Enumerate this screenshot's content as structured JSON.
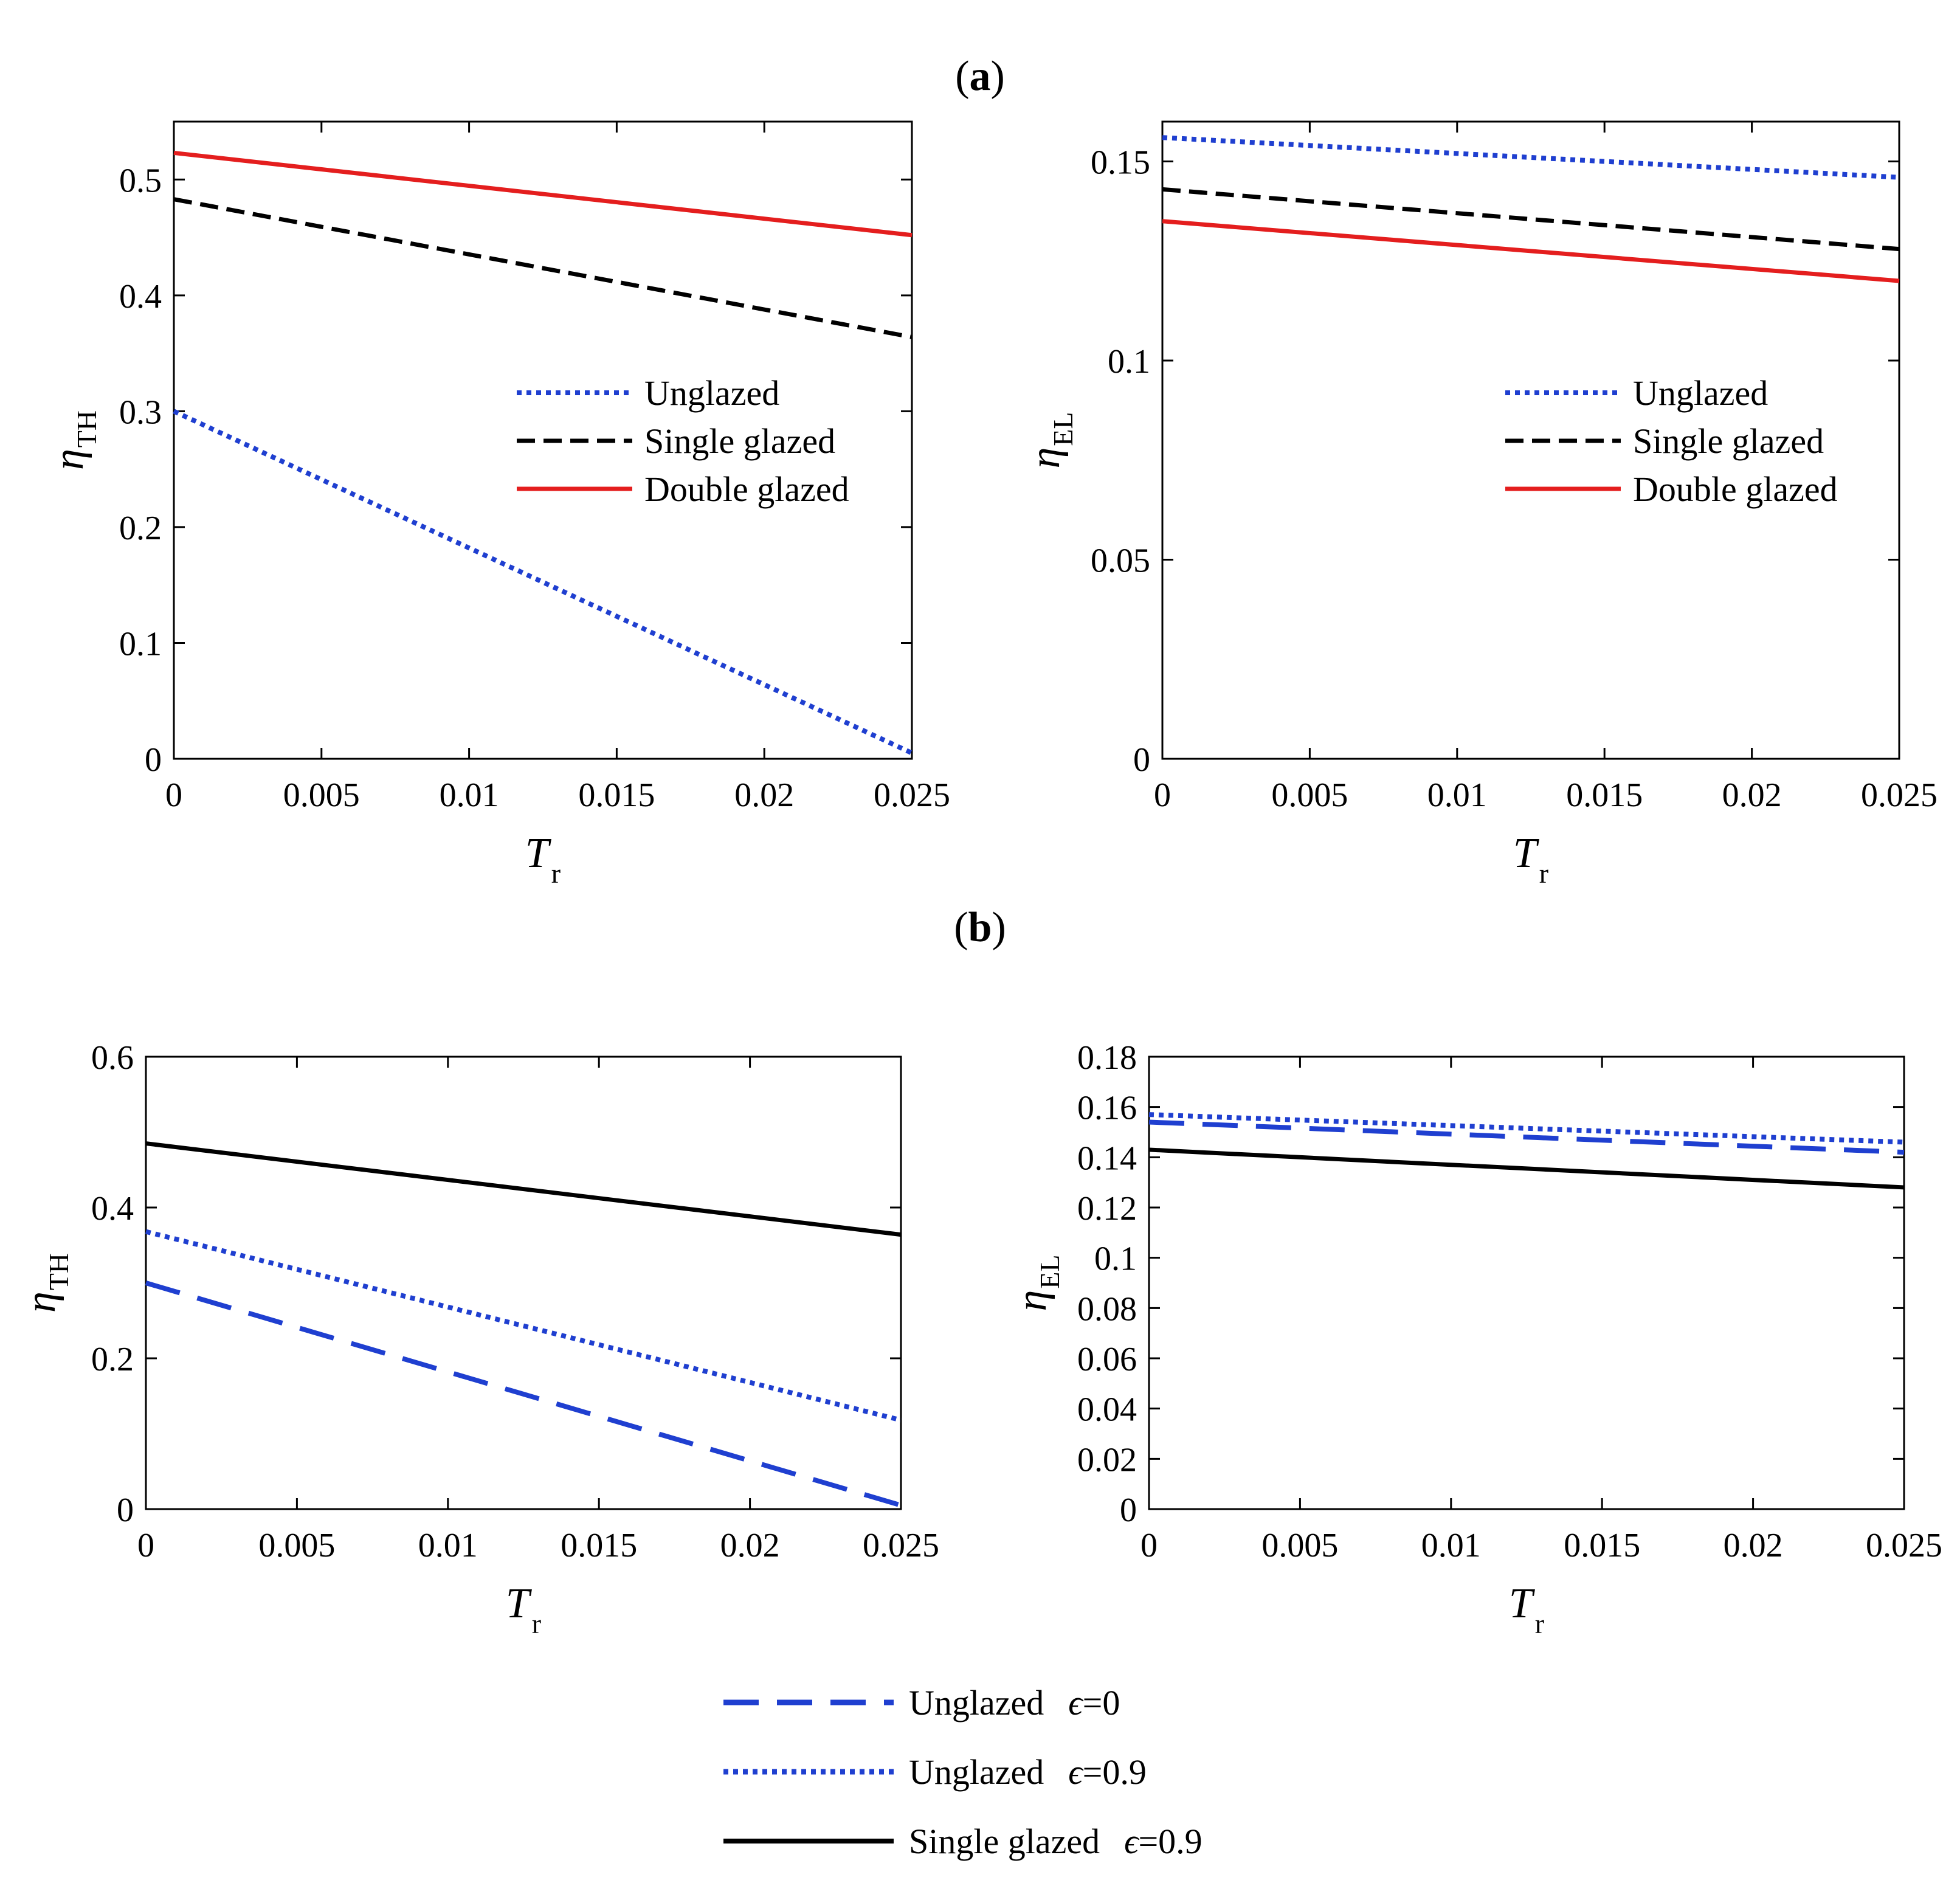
{
  "panel_labels": {
    "a": {
      "open": "(",
      "letter": "a",
      "close": ")"
    },
    "b": {
      "open": "(",
      "letter": "b",
      "close": ")"
    }
  },
  "colors": {
    "blue": "#1f3fd0",
    "black": "#000000",
    "red": "#e41e1e"
  },
  "chart_data": [
    {
      "id": "a-left",
      "type": "line",
      "xlabel_main": "T",
      "xlabel_sub": "r",
      "ylabel_main": "η",
      "ylabel_sub": "TH",
      "xlim": [
        0,
        0.025
      ],
      "ylim": [
        0,
        0.55
      ],
      "xticks": [
        0,
        0.005,
        0.01,
        0.015,
        0.02,
        0.025
      ],
      "xtick_labels": [
        "0",
        "0.005",
        "0.01",
        "0.015",
        "0.02",
        "0.025"
      ],
      "yticks": [
        0,
        0.1,
        0.2,
        0.3,
        0.4,
        0.5
      ],
      "ytick_labels": [
        "0",
        "0.1",
        "0.2",
        "0.3",
        "0.4",
        "0.5"
      ],
      "legend_position": "middle-right",
      "series": [
        {
          "name": "Unglazed",
          "style": "dotted",
          "color": "#1f3fd0",
          "x": [
            0,
            0.025
          ],
          "y": [
            0.3,
            0.005
          ]
        },
        {
          "name": "Single glazed",
          "style": "dashed",
          "color": "#000000",
          "x": [
            0,
            0.025
          ],
          "y": [
            0.483,
            0.364
          ]
        },
        {
          "name": "Double glazed",
          "style": "solid",
          "color": "#e41e1e",
          "x": [
            0,
            0.025
          ],
          "y": [
            0.523,
            0.452
          ]
        }
      ]
    },
    {
      "id": "a-right",
      "type": "line",
      "xlabel_main": "T",
      "xlabel_sub": "r",
      "ylabel_main": "η",
      "ylabel_sub": "EL",
      "xlim": [
        0,
        0.025
      ],
      "ylim": [
        0,
        0.16
      ],
      "xticks": [
        0,
        0.005,
        0.01,
        0.015,
        0.02,
        0.025
      ],
      "xtick_labels": [
        "0",
        "0.005",
        "0.01",
        "0.015",
        "0.02",
        "0.025"
      ],
      "yticks": [
        0,
        0.05,
        0.1,
        0.15
      ],
      "ytick_labels": [
        "0",
        "0.05",
        "0.1",
        "0.15"
      ],
      "legend_position": "middle-right",
      "series": [
        {
          "name": "Unglazed",
          "style": "dotted",
          "color": "#1f3fd0",
          "x": [
            0,
            0.025
          ],
          "y": [
            0.156,
            0.146
          ]
        },
        {
          "name": "Single glazed",
          "style": "dashed",
          "color": "#000000",
          "x": [
            0,
            0.025
          ],
          "y": [
            0.143,
            0.128
          ]
        },
        {
          "name": "Double glazed",
          "style": "solid",
          "color": "#e41e1e",
          "x": [
            0,
            0.025
          ],
          "y": [
            0.135,
            0.12
          ]
        }
      ]
    },
    {
      "id": "b-left",
      "type": "line",
      "xlabel_main": "T",
      "xlabel_sub": "r",
      "ylabel_main": "η",
      "ylabel_sub": "TH",
      "xlim": [
        0,
        0.025
      ],
      "ylim": [
        0,
        0.6
      ],
      "xticks": [
        0,
        0.005,
        0.01,
        0.015,
        0.02,
        0.025
      ],
      "xtick_labels": [
        "0",
        "0.005",
        "0.01",
        "0.015",
        "0.02",
        "0.025"
      ],
      "yticks": [
        0,
        0.2,
        0.4,
        0.6
      ],
      "ytick_labels": [
        "0",
        "0.2",
        "0.4",
        "0.6"
      ],
      "series": [
        {
          "name": "Unglazed ϵ=0",
          "style": "longdash",
          "color": "#1f3fd0",
          "x": [
            0,
            0.025
          ],
          "y": [
            0.3,
            0.005
          ]
        },
        {
          "name": "Unglazed ϵ=0.9",
          "style": "dotted",
          "color": "#1f3fd0",
          "x": [
            0,
            0.025
          ],
          "y": [
            0.368,
            0.118
          ]
        },
        {
          "name": "Single glazed ϵ=0.9",
          "style": "solid",
          "color": "#000000",
          "x": [
            0,
            0.025
          ],
          "y": [
            0.485,
            0.364
          ]
        }
      ]
    },
    {
      "id": "b-right",
      "type": "line",
      "xlabel_main": "T",
      "xlabel_sub": "r",
      "ylabel_main": "η",
      "ylabel_sub": "EL",
      "xlim": [
        0,
        0.025
      ],
      "ylim": [
        0,
        0.18
      ],
      "xticks": [
        0,
        0.005,
        0.01,
        0.015,
        0.02,
        0.025
      ],
      "xtick_labels": [
        "0",
        "0.005",
        "0.01",
        "0.015",
        "0.02",
        "0.025"
      ],
      "yticks": [
        0,
        0.02,
        0.04,
        0.06,
        0.08,
        0.1,
        0.12,
        0.14,
        0.16,
        0.18
      ],
      "ytick_labels": [
        "0",
        "0.02",
        "0.04",
        "0.06",
        "0.08",
        "0.1",
        "0.12",
        "0.14",
        "0.16",
        "0.18"
      ],
      "series": [
        {
          "name": "Unglazed ϵ=0",
          "style": "longdash",
          "color": "#1f3fd0",
          "x": [
            0,
            0.025
          ],
          "y": [
            0.154,
            0.142
          ]
        },
        {
          "name": "Unglazed ϵ=0.9",
          "style": "dotted",
          "color": "#1f3fd0",
          "x": [
            0,
            0.025
          ],
          "y": [
            0.157,
            0.146
          ]
        },
        {
          "name": "Single glazed ϵ=0.9",
          "style": "solid",
          "color": "#000000",
          "x": [
            0,
            0.025
          ],
          "y": [
            0.143,
            0.128
          ]
        }
      ]
    }
  ],
  "legend_a": [
    {
      "label": "Unglazed",
      "style": "dotted",
      "color": "#1f3fd0"
    },
    {
      "label": "Single glazed",
      "style": "dashed",
      "color": "#000000"
    },
    {
      "label": "Double glazed",
      "style": "solid",
      "color": "#e41e1e"
    }
  ],
  "legend_b": [
    {
      "label": "Unglazed",
      "eps": "ϵ",
      "eps_value": "=0",
      "style": "longdash",
      "color": "#1f3fd0"
    },
    {
      "label": "Unglazed",
      "eps": "ϵ",
      "eps_value": "=0.9",
      "style": "dotted",
      "color": "#1f3fd0"
    },
    {
      "label": "Single glazed",
      "eps": "ϵ",
      "eps_value": "=0.9",
      "style": "solid",
      "color": "#000000"
    }
  ]
}
